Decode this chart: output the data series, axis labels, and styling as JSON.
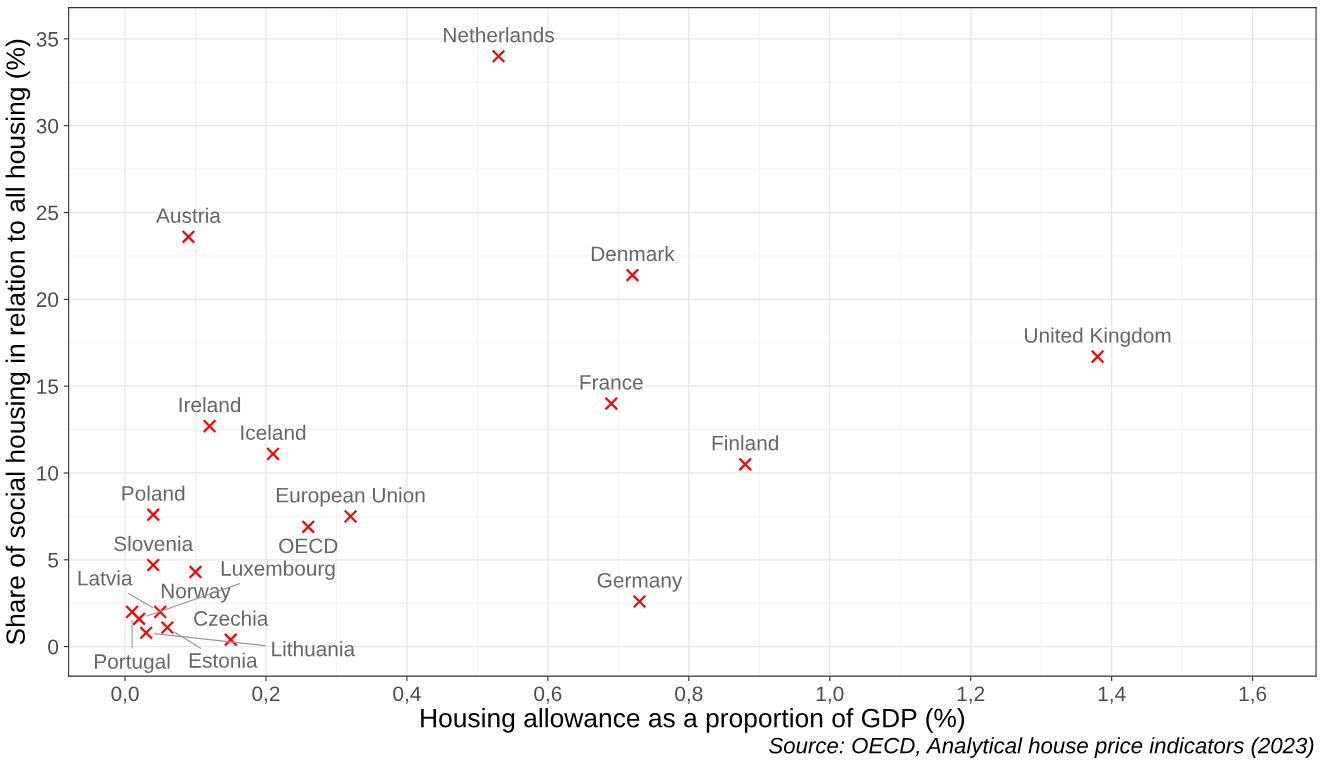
{
  "chart_data": {
    "type": "scatter",
    "xlabel": "Housing allowance as a proportion of GDP (%)",
    "ylabel": "Share of social housing in relation to all housing (%)",
    "x": [
      0.53,
      0.09,
      0.72,
      1.38,
      0.69,
      0.12,
      0.21,
      0.88,
      0.04,
      0.32,
      0.26,
      0.04,
      0.1,
      0.73,
      0.15,
      0.01,
      0.02,
      0.05,
      0.06,
      0.03
    ],
    "values": [
      34.0,
      23.6,
      21.4,
      16.7,
      14.0,
      12.7,
      11.1,
      10.5,
      7.6,
      7.5,
      6.9,
      4.7,
      4.3,
      2.6,
      0.4,
      2.0,
      1.6,
      2.0,
      1.1,
      0.8
    ],
    "color": "#ff0000",
    "marker": "cross",
    "grid": true,
    "xlim": [
      -0.08,
      1.69
    ],
    "ylim": [
      -1.7,
      36.8
    ],
    "xticks": [
      {
        "value": 0,
        "label": "0,0"
      },
      {
        "value": 0.2,
        "label": "0,2"
      },
      {
        "value": 0.4,
        "label": "0,4"
      },
      {
        "value": 0.6,
        "label": "0,6"
      },
      {
        "value": 0.8,
        "label": "0,8"
      },
      {
        "value": 1.0,
        "label": "1,0"
      },
      {
        "value": 1.2,
        "label": "1,2"
      },
      {
        "value": 1.4,
        "label": "1,4"
      },
      {
        "value": 1.6,
        "label": "1,6"
      }
    ],
    "yticks": [
      0,
      5,
      10,
      15,
      20,
      25,
      30,
      35
    ],
    "annotations": [
      {
        "text": "Netherlands",
        "x": 0.53,
        "y": 34.0
      },
      {
        "text": "Austria",
        "x": 0.09,
        "y": 23.6
      },
      {
        "text": "Denmark",
        "x": 0.72,
        "y": 21.4
      },
      {
        "text": "United Kingdom",
        "x": 1.38,
        "y": 16.7
      },
      {
        "text": "France",
        "x": 0.69,
        "y": 14.0
      },
      {
        "text": "Ireland",
        "x": 0.12,
        "y": 12.7
      },
      {
        "text": "Iceland",
        "x": 0.21,
        "y": 11.1
      },
      {
        "text": "Finland",
        "x": 0.88,
        "y": 10.5
      },
      {
        "text": "Poland",
        "x": 0.04,
        "y": 7.6
      },
      {
        "text": "European Union",
        "x": 0.32,
        "y": 7.5
      },
      {
        "text": "OECD",
        "x": 0.26,
        "y": 6.9
      },
      {
        "text": "Slovenia",
        "x": 0.04,
        "y": 4.7
      },
      {
        "text": "Norway",
        "x": 0.1,
        "y": 4.3
      },
      {
        "text": "Germany",
        "x": 0.73,
        "y": 2.6
      },
      {
        "text": "Czechia",
        "x": 0.15,
        "y": 0.4
      },
      {
        "text": "Portugal",
        "x": 0.01,
        "y": 2.0
      },
      {
        "text": "Luxembourg",
        "x": 0.02,
        "y": 1.6
      },
      {
        "text": "Latvia",
        "x": 0.05,
        "y": 2.0
      },
      {
        "text": "Estonia",
        "x": 0.06,
        "y": 1.1
      },
      {
        "text": "Lithuania",
        "x": 0.03,
        "y": 0.8
      },
      "Source: OECD, Analytical house price indicators (2023)"
    ]
  }
}
